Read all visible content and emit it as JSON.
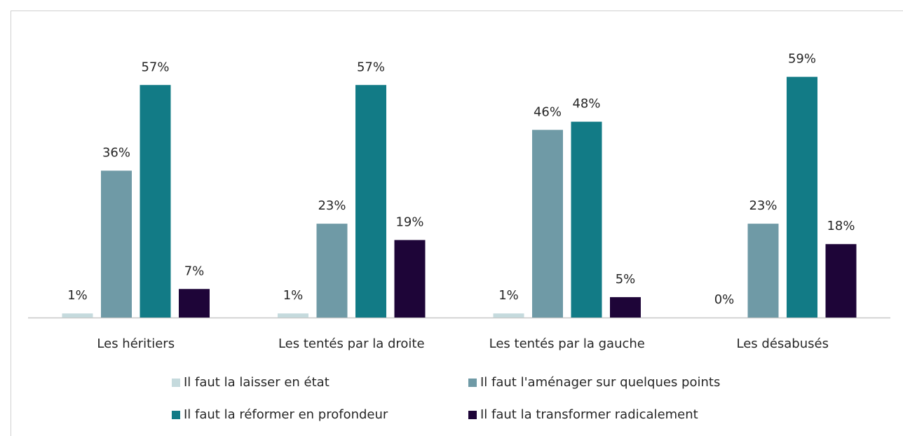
{
  "chart_data": {
    "type": "bar",
    "categories": [
      "Les héritiers",
      "Les tentés par la droite",
      "Les tentés par la gauche",
      "Les désabusés"
    ],
    "series": [
      {
        "name": "Il faut la laisser en état",
        "color": "#c5dadd",
        "values": [
          1,
          1,
          1,
          0
        ],
        "value_labels": [
          "1%",
          "1%",
          "1%",
          "0%"
        ]
      },
      {
        "name": "Il faut l'aménager sur quelques points",
        "color": "#6f9aa6",
        "values": [
          36,
          23,
          46,
          23
        ],
        "value_labels": [
          "36%",
          "23%",
          "46%",
          "23%"
        ]
      },
      {
        "name": "Il faut la réformer en profondeur",
        "color": "#127b86",
        "values": [
          57,
          57,
          48,
          59
        ],
        "value_labels": [
          "57%",
          "57%",
          "48%",
          "59%"
        ]
      },
      {
        "name": "Il faut la transformer radicalement",
        "color": "#1e0538",
        "values": [
          7,
          19,
          5,
          18
        ],
        "value_labels": [
          "7%",
          "19%",
          "5%",
          "18%"
        ]
      }
    ],
    "legend": "bottom"
  }
}
